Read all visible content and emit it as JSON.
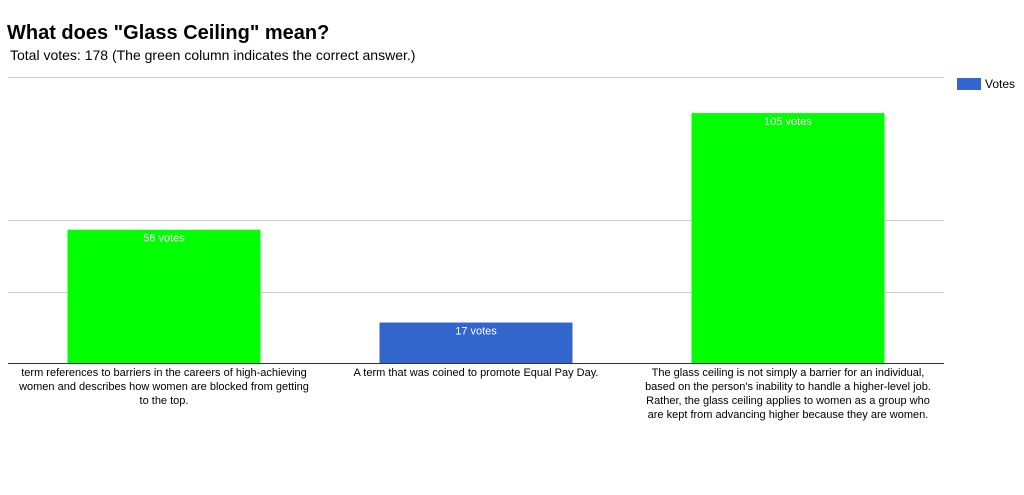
{
  "title": "What does \"Glass Ceiling\" mean?",
  "subtitle": "Total votes: 178 (The green column indicates the correct answer.)",
  "legend": {
    "label": "Votes",
    "color": "#3366cc"
  },
  "colors": {
    "correct": "#00ff00",
    "default": "#3366cc",
    "grid": "#cccccc",
    "axis": "#333333",
    "data_label": "#ffffff"
  },
  "chart_data": {
    "type": "bar",
    "title": "What does \"Glass Ceiling\" mean?",
    "subtitle": "Total votes: 178 (The green column indicates the correct answer.)",
    "categories": [
      "term references to barriers in the careers of high-achieving women and describes how women are blocked from getting to the top.",
      "A term that was coined to promote Equal Pay Day.",
      "The glass ceiling is not simply a barrier for an individual, based on the person's inability to handle a higher-level job. Rather, the glass ceiling applies to women as a group who are kept from advancing higher because they are women."
    ],
    "series": [
      {
        "name": "Votes",
        "values": [
          56,
          17,
          105
        ]
      }
    ],
    "data_labels": [
      "56 votes",
      "17 votes",
      "105 votes"
    ],
    "correct": [
      true,
      false,
      true
    ],
    "ylim": [
      0,
      120
    ],
    "gridlines": [
      0,
      30,
      60,
      120
    ],
    "grid": true,
    "legend_position": "right",
    "xlabel": "",
    "ylabel": ""
  }
}
